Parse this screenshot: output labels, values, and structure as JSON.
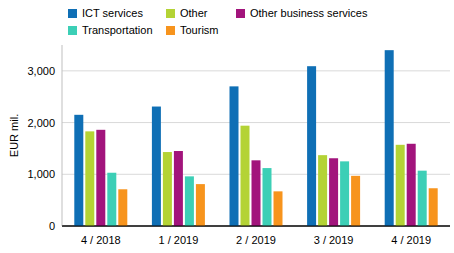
{
  "chart_data": {
    "type": "bar",
    "y_label": "EUR mil.",
    "categories": [
      "4 / 2018",
      "1 / 2019",
      "2 / 2019",
      "3 / 2019",
      "4 / 2019"
    ],
    "series": [
      {
        "name": "ICT services",
        "color": "#0f6fb5",
        "values": [
          2150,
          2310,
          2700,
          3090,
          3400
        ]
      },
      {
        "name": "Other",
        "color": "#b4d335",
        "values": [
          1830,
          1430,
          1940,
          1370,
          1570
        ]
      },
      {
        "name": "Other business services",
        "color": "#a2147c",
        "values": [
          1860,
          1450,
          1270,
          1310,
          1590
        ]
      },
      {
        "name": "Transportation",
        "color": "#3ccfb6",
        "values": [
          1030,
          960,
          1120,
          1250,
          1070
        ]
      },
      {
        "name": "Tourism",
        "color": "#f7941d",
        "values": [
          710,
          810,
          670,
          970,
          730
        ]
      }
    ],
    "ylim": [
      0,
      3500
    ],
    "yticks": [
      0,
      {
        "value": 1000,
        "label": "1,000"
      },
      {
        "value": 2000,
        "label": "2,000"
      },
      {
        "value": 3000,
        "label": "3,000"
      }
    ],
    "grid": true,
    "legend": "top"
  }
}
